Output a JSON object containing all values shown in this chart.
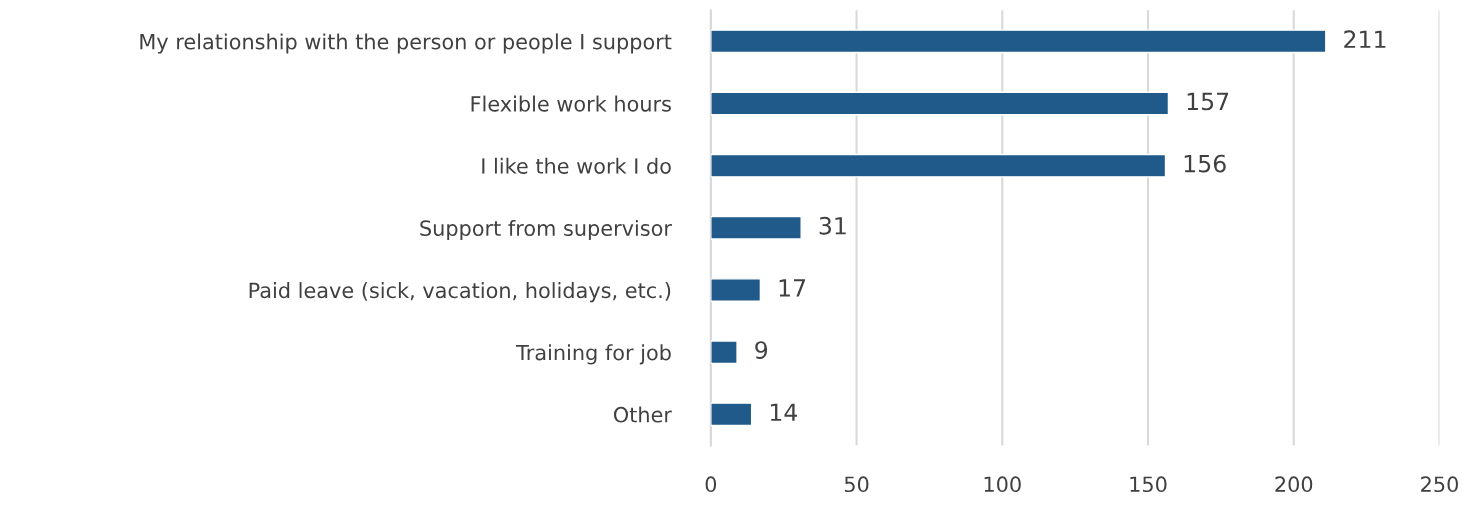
{
  "chart_data": {
    "type": "bar",
    "orientation": "horizontal",
    "categories": [
      "My relationship with the person or people I support",
      "Flexible work hours",
      "I like the work I do",
      "Support from supervisor",
      "Paid leave (sick, vacation, holidays, etc.)",
      "Training for job",
      "Other"
    ],
    "values": [
      211,
      157,
      156,
      31,
      17,
      9,
      14
    ],
    "color": "#1f5a8a",
    "xlim": [
      0,
      250
    ],
    "xticks": [
      0,
      50,
      100,
      150,
      200,
      250
    ],
    "grid": "x",
    "data_labels": true,
    "legend": false
  }
}
